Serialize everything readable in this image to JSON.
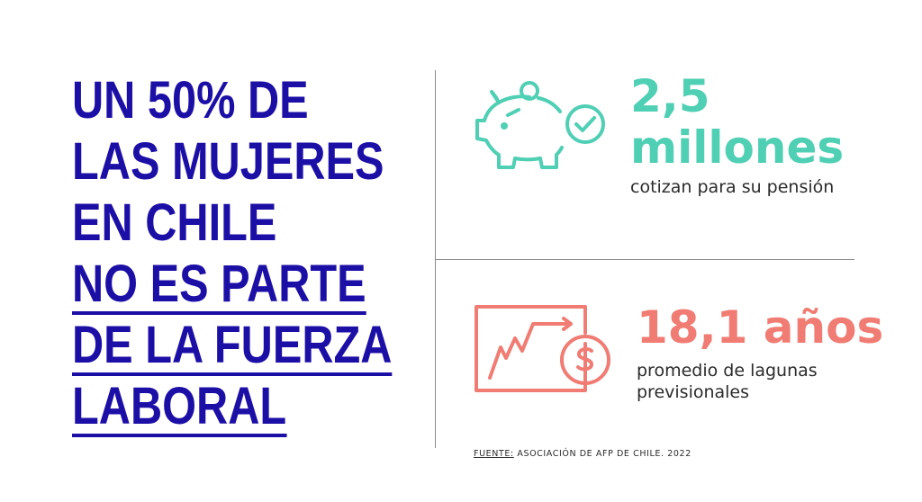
{
  "headline": {
    "line1": "UN 50% DE",
    "line2": "LAS MUJERES",
    "line3": "EN CHILE",
    "line4": "NO ES PARTE",
    "line5": "DE LA FUERZA",
    "line6": "LABORAL"
  },
  "stat1": {
    "number": "2,5",
    "unit": "millones",
    "caption": "cotizan para su pensión",
    "icon": "piggy-bank-check-icon"
  },
  "stat2": {
    "number": "18,1 años",
    "caption_line1": "promedio de lagunas",
    "caption_line2": "previsionales",
    "icon": "chart-dollar-icon"
  },
  "source": {
    "label": "FUENTE:",
    "text": "ASOCIACIÓN DE AFP DE CHILE. 2022"
  },
  "colors": {
    "headline": "#1c0fa6",
    "teal": "#4fcfb3",
    "salmon": "#f07c73"
  }
}
